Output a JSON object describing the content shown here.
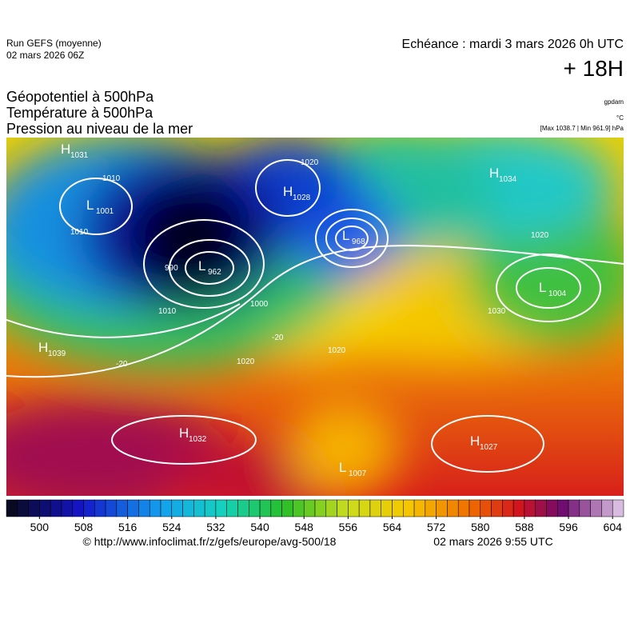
{
  "header": {
    "run": "Run GEFS (moyenne)",
    "date": "02 mars 2026 06Z",
    "echeance": "Echéance : mardi 3 mars 2026 0h UTC",
    "lead": "+ 18H"
  },
  "titles": [
    "Géopotentiel à 500hPa",
    "Température à 500hPa",
    "Pression au niveau de la mer"
  ],
  "units": [
    "gpdam",
    "°C",
    "[Max 1038.7 | Min 961.9] hPa"
  ],
  "centers": [
    {
      "letter": "H",
      "value": "1031"
    },
    {
      "letter": "L",
      "value": "1001"
    },
    {
      "letter": "L",
      "value": "962"
    },
    {
      "letter": "H",
      "value": "1028"
    },
    {
      "letter": "L",
      "value": "968"
    },
    {
      "letter": "H",
      "value": "1034"
    },
    {
      "letter": "L",
      "value": "1004"
    },
    {
      "letter": "H",
      "value": "1039"
    },
    {
      "letter": "H",
      "value": "1032"
    },
    {
      "letter": "H",
      "value": "1027"
    },
    {
      "letter": "L",
      "value": "1007"
    }
  ],
  "isobar_labels": [
    "1010",
    "1010",
    "1010",
    "990",
    "1000",
    "1020",
    "1020",
    "1020",
    "1020",
    "1030",
    "-20",
    "-20"
  ],
  "colorbar": {
    "lim": [
      494,
      606
    ],
    "ticks": [
      500,
      508,
      516,
      524,
      532,
      540,
      548,
      556,
      564,
      572,
      580,
      588,
      596,
      604
    ]
  },
  "footer": {
    "url": "© http://www.infoclimat.fr/z/gefs/europe/avg-500/18",
    "time": "02 mars 2026  9:55 UTC"
  }
}
